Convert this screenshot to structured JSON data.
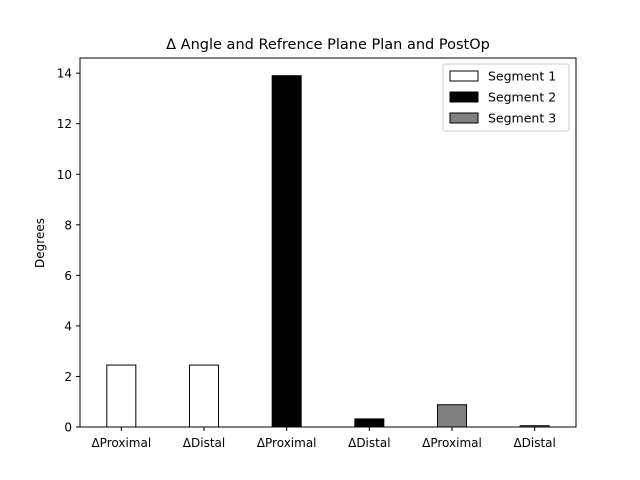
{
  "chart_data": {
    "type": "bar",
    "title": "Δ Angle and Refrence Plane Plan and PostOp",
    "xlabel": "",
    "ylabel": "Degrees",
    "ylim": [
      0,
      14.6
    ],
    "yticks": [
      0,
      2,
      4,
      6,
      8,
      10,
      12,
      14
    ],
    "categories": [
      "ΔProximal",
      "ΔDistal",
      "ΔProximal",
      "ΔDistal",
      "ΔProximal",
      "ΔDistal"
    ],
    "series": [
      {
        "name": "Segment 1",
        "color": "#ffffff",
        "values": [
          2.45,
          2.45,
          null,
          null,
          null,
          null
        ]
      },
      {
        "name": "Segment 2",
        "color": "#000000",
        "values": [
          null,
          null,
          13.9,
          0.32,
          null,
          null
        ]
      },
      {
        "name": "Segment 3",
        "color": "#808080",
        "values": [
          null,
          null,
          null,
          null,
          0.88,
          0.05
        ]
      }
    ],
    "grid": false,
    "legend_position": "top-right"
  }
}
